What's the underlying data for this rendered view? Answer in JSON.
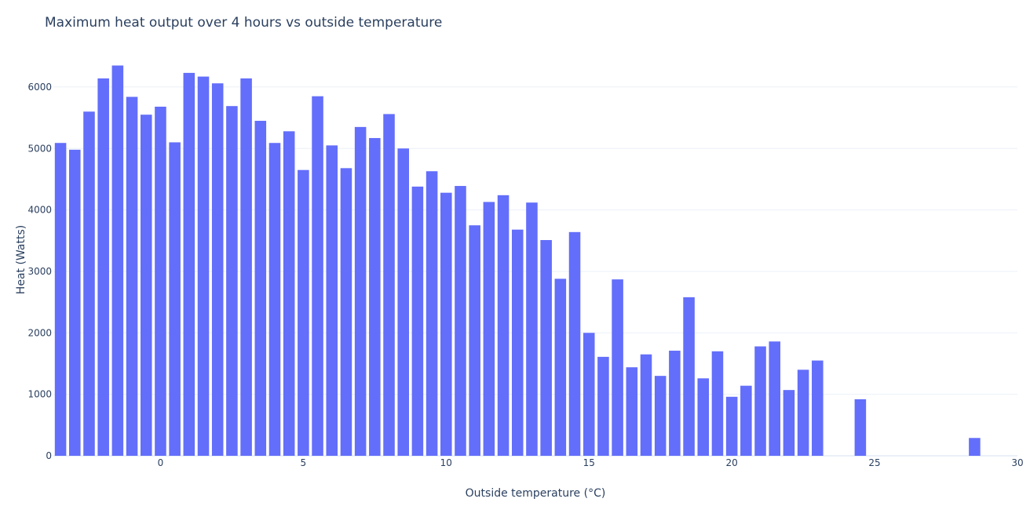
{
  "chart_data": {
    "type": "bar",
    "title": "Maximum heat output over 4 hours vs outside temperature",
    "xlabel": "Outside temperature (°C)",
    "ylabel": "Heat (Watts)",
    "xlim": [
      -3.75,
      30
    ],
    "ylim": [
      0,
      6650
    ],
    "xticks": [
      0,
      5,
      10,
      15,
      20,
      25,
      30
    ],
    "yticks": [
      0,
      1000,
      2000,
      3000,
      4000,
      5000,
      6000
    ],
    "bar_width": 0.4,
    "grid": true,
    "color": "#636efa",
    "x": [
      -3.5,
      -3,
      -2.5,
      -2,
      -1.5,
      -1,
      -0.5,
      0,
      0.5,
      1,
      1.5,
      2,
      2.5,
      3,
      3.5,
      4,
      4.5,
      5,
      5.5,
      6,
      6.5,
      7,
      7.5,
      8,
      8.5,
      9,
      9.5,
      10,
      10.5,
      11,
      11.5,
      12,
      12.5,
      13,
      13.5,
      14,
      14.5,
      15,
      15.5,
      16,
      16.5,
      17,
      17.5,
      18,
      18.5,
      19,
      19.5,
      20,
      20.5,
      21,
      21.5,
      22,
      22.5,
      23,
      24.5,
      28.5
    ],
    "values": [
      5090,
      4980,
      5600,
      6140,
      6350,
      5840,
      5550,
      5680,
      5100,
      6230,
      6170,
      6060,
      5690,
      6140,
      5450,
      5090,
      5280,
      4650,
      5850,
      5050,
      4680,
      5350,
      5170,
      5560,
      5000,
      4380,
      4630,
      4280,
      4390,
      3750,
      4130,
      4240,
      3680,
      4120,
      3510,
      2880,
      3640,
      2000,
      1610,
      2870,
      1440,
      1650,
      1300,
      1710,
      2580,
      1260,
      1700,
      960,
      1140,
      1780,
      1860,
      1070,
      1400,
      1550,
      920,
      290
    ]
  }
}
